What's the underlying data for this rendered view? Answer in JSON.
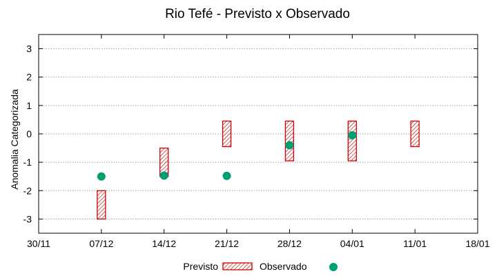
{
  "chart_data": {
    "type": "scatter",
    "title": "Rio Tefé - Previsto x Observado",
    "ylabel": "Anomalia Categorizada",
    "xlabel": "",
    "ylim": [
      -3.5,
      3.5
    ],
    "y_ticks": [
      -3,
      -2,
      -1,
      0,
      1,
      2,
      3
    ],
    "x_ticks": [
      "30/11",
      "07/12",
      "14/12",
      "21/12",
      "28/12",
      "04/01",
      "11/01",
      "18/01"
    ],
    "grid": "horizontal dotted",
    "legend_placement": "bottom-center",
    "series": [
      {
        "name": "Previsto",
        "style": "hatched-bar",
        "color": "#cc0000",
        "points": [
          {
            "x": "07/12",
            "low": -3,
            "high": -2
          },
          {
            "x": "14/12",
            "low": -1.5,
            "high": -0.5
          },
          {
            "x": "21/12",
            "low": -0.45,
            "high": 0.45
          },
          {
            "x": "28/12",
            "low": -0.95,
            "high": 0.45
          },
          {
            "x": "04/01",
            "low": -0.95,
            "high": 0.45
          },
          {
            "x": "11/01",
            "low": -0.45,
            "high": 0.45
          }
        ]
      },
      {
        "name": "Observado",
        "style": "dot",
        "color": "#009e73",
        "points": [
          {
            "x": "07/12",
            "y": -1.5
          },
          {
            "x": "14/12",
            "y": -1.47
          },
          {
            "x": "21/12",
            "y": -1.48
          },
          {
            "x": "28/12",
            "y": -0.4
          },
          {
            "x": "04/01",
            "y": -0.05
          }
        ]
      }
    ]
  }
}
